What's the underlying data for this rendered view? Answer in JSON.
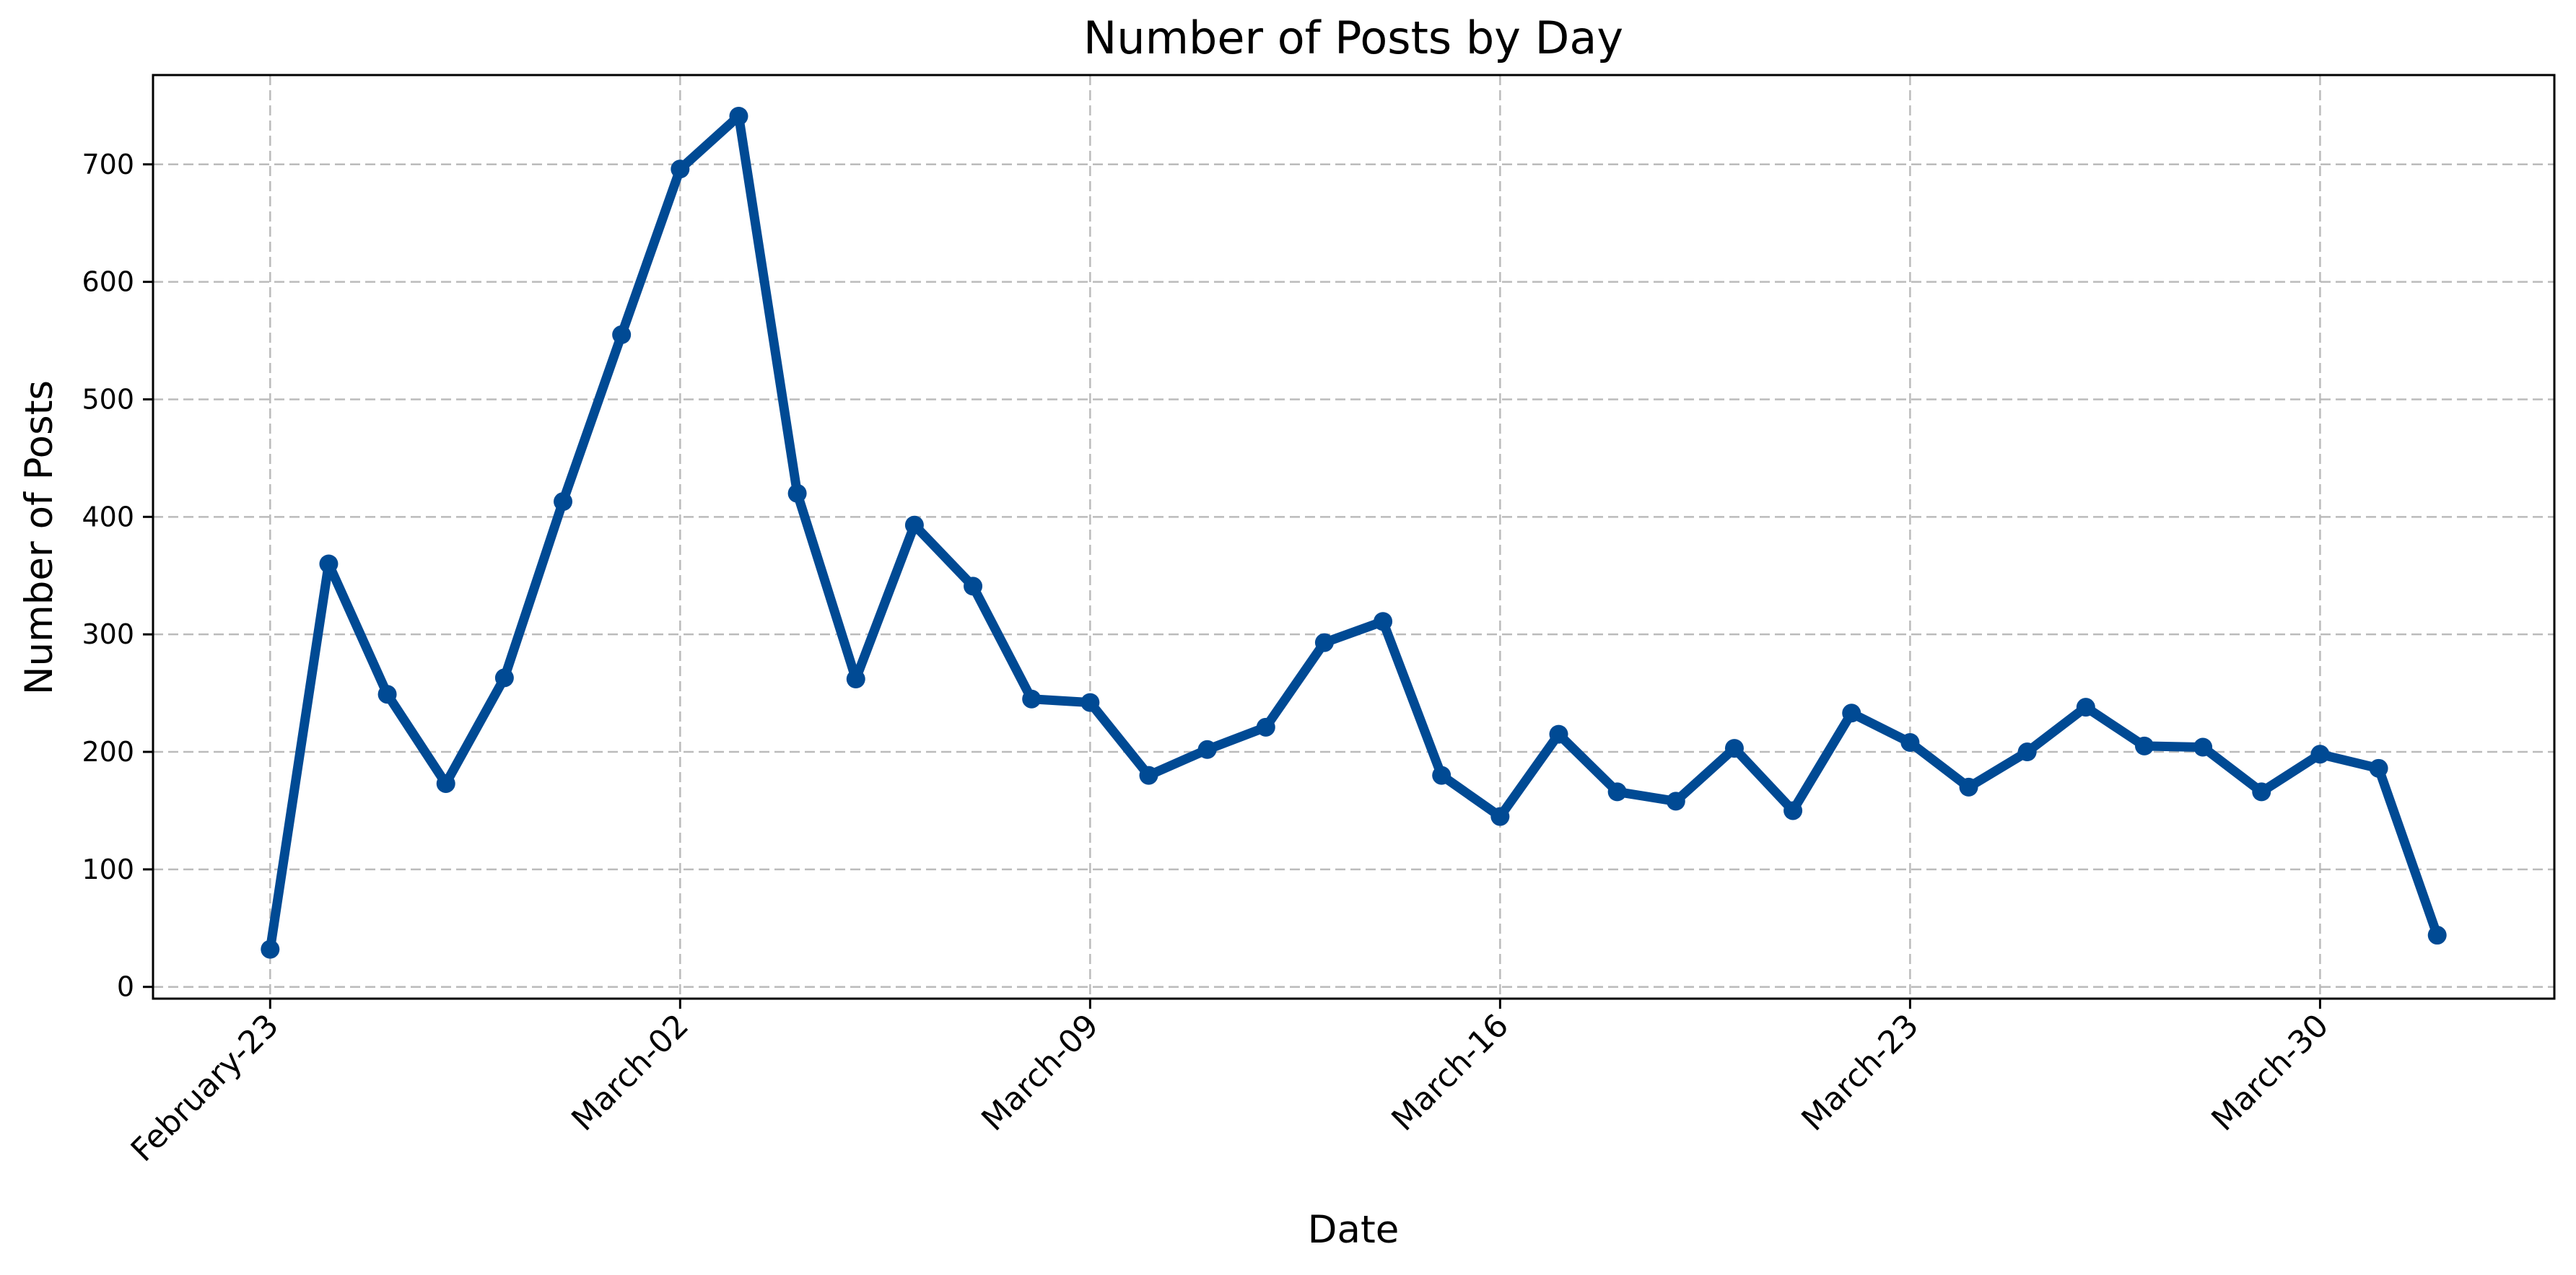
{
  "chart_data": {
    "type": "line",
    "title": "Number of Posts by Day",
    "xlabel": "Date",
    "ylabel": "Number of Posts",
    "x": [
      "2025-02-23",
      "2025-02-24",
      "2025-02-25",
      "2025-02-26",
      "2025-02-27",
      "2025-02-28",
      "2025-03-01",
      "2025-03-02",
      "2025-03-03",
      "2025-03-04",
      "2025-03-05",
      "2025-03-06",
      "2025-03-07",
      "2025-03-08",
      "2025-03-09",
      "2025-03-10",
      "2025-03-11",
      "2025-03-12",
      "2025-03-13",
      "2025-03-14",
      "2025-03-15",
      "2025-03-16",
      "2025-03-17",
      "2025-03-18",
      "2025-03-19",
      "2025-03-20",
      "2025-03-21",
      "2025-03-22",
      "2025-03-23",
      "2025-03-24",
      "2025-03-25",
      "2025-03-26",
      "2025-03-27",
      "2025-03-28",
      "2025-03-29",
      "2025-03-30",
      "2025-03-31",
      "2025-04-01"
    ],
    "series": [
      {
        "values": [
          32,
          360,
          249,
          173,
          263,
          413,
          555,
          696,
          741,
          420,
          262,
          393,
          341,
          245,
          242,
          180,
          202,
          221,
          293,
          311,
          180,
          145,
          215,
          166,
          158,
          203,
          150,
          233,
          208,
          170,
          200,
          238,
          205,
          204,
          166,
          198,
          186,
          44
        ],
        "color": "#004a94"
      }
    ],
    "x_ticks": [
      {
        "date": "2025-02-23",
        "label": "February-23"
      },
      {
        "date": "2025-03-02",
        "label": "March-02"
      },
      {
        "date": "2025-03-09",
        "label": "March-09"
      },
      {
        "date": "2025-03-16",
        "label": "March-16"
      },
      {
        "date": "2025-03-23",
        "label": "March-23"
      },
      {
        "date": "2025-03-30",
        "label": "March-30"
      }
    ],
    "y_ticks": [
      0,
      100,
      200,
      300,
      400,
      500,
      600,
      700
    ],
    "ylim": [
      -10,
      776
    ],
    "xlim": [
      "2025-02-21",
      "2025-04-03"
    ],
    "grid": true,
    "x_tick_rotation": -45
  }
}
